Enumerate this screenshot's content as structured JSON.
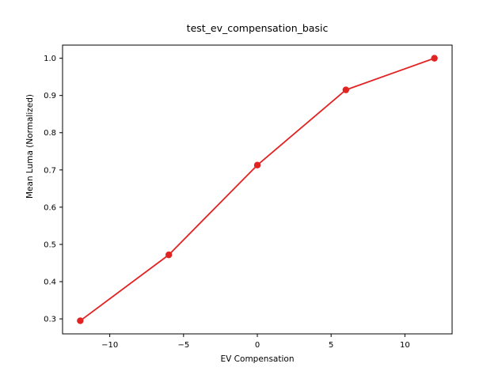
{
  "chart_data": {
    "type": "line",
    "title": "test_ev_compensation_basic",
    "xlabel": "EV Compensation",
    "ylabel": "Mean Luma (Normalized)",
    "x": [
      -12,
      -6,
      0,
      6,
      12
    ],
    "y": [
      0.295,
      0.472,
      0.713,
      0.915,
      1.0
    ],
    "xlim": [
      -13.2,
      13.2
    ],
    "ylim": [
      0.2598,
      1.0353
    ],
    "xticks": [
      -10,
      -5,
      0,
      5,
      10
    ],
    "xtick_labels": [
      "−10",
      "−5",
      "0",
      "5",
      "10"
    ],
    "yticks": [
      0.3,
      0.4,
      0.5,
      0.6,
      0.7,
      0.8,
      0.9,
      1.0
    ],
    "ytick_labels": [
      "0.3",
      "0.4",
      "0.5",
      "0.6",
      "0.7",
      "0.8",
      "0.9",
      "1.0"
    ],
    "grid": false,
    "legend": null,
    "line_color": "#e32222",
    "marker_color": "#e32222",
    "axes_color": "#000000",
    "background_color": "#ffffff"
  }
}
